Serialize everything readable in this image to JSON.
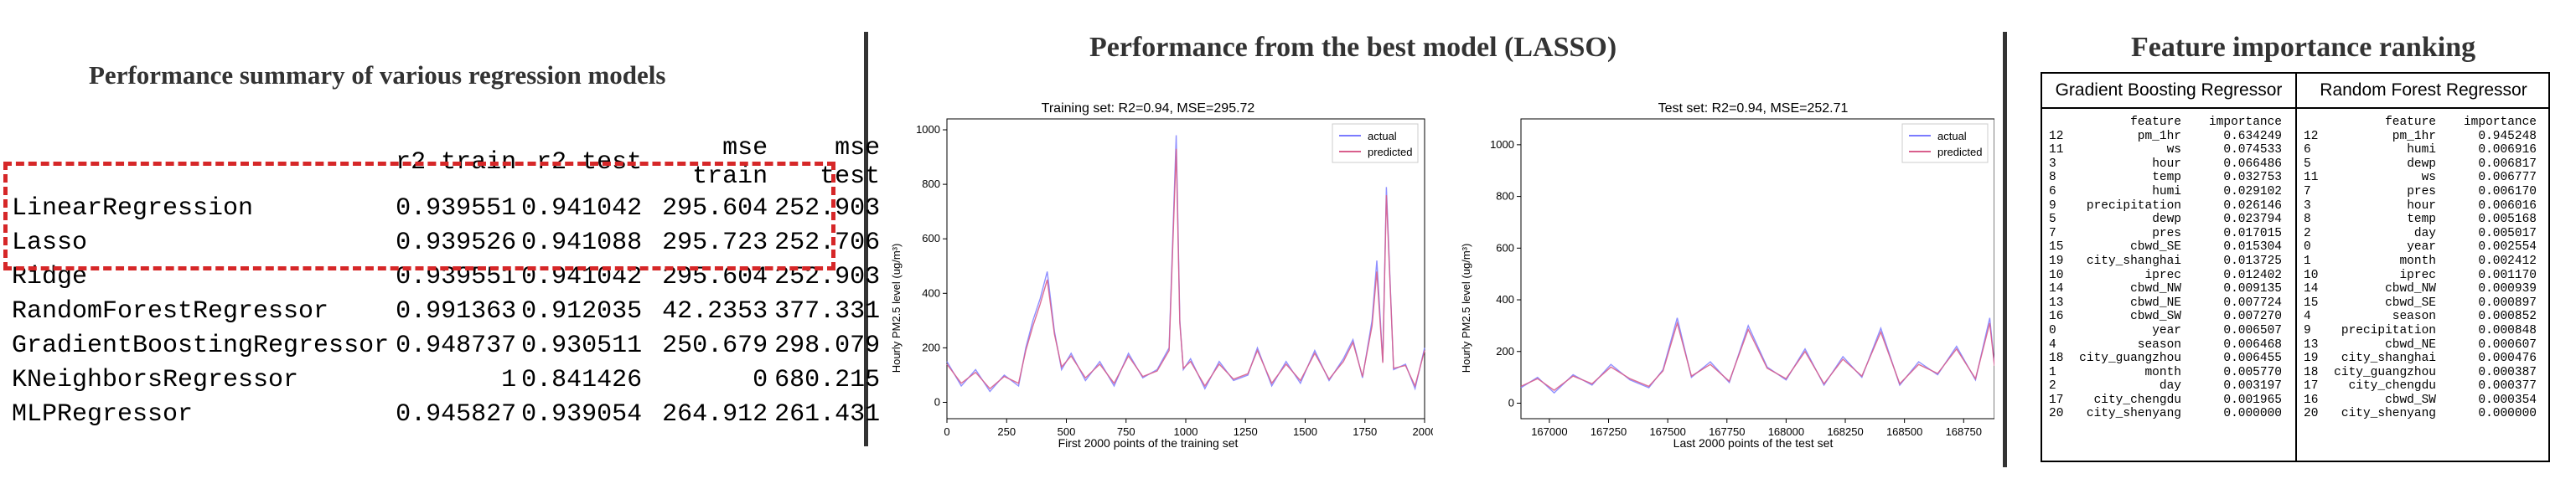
{
  "titles": {
    "summary": "Performance summary of various regression models",
    "best": "Performance from the best model (LASSO)",
    "importance": "Feature importance ranking"
  },
  "summary_table": {
    "columns": [
      "r2 train",
      "r2 test",
      "mse train",
      "mse test"
    ],
    "rows": [
      {
        "model": "LinearRegression",
        "values": [
          "0.939551",
          "0.941042",
          "295.604",
          "252.903"
        ]
      },
      {
        "model": "Lasso",
        "values": [
          "0.939526",
          "0.941088",
          "295.723",
          "252.706"
        ]
      },
      {
        "model": "Ridge",
        "values": [
          "0.939551",
          "0.941042",
          "295.604",
          "252.903"
        ]
      },
      {
        "model": "RandomForestRegressor",
        "values": [
          "0.991363",
          "0.912035",
          "42.2353",
          "377.331"
        ]
      },
      {
        "model": "GradientBoostingRegressor",
        "values": [
          "0.948737",
          "0.930511",
          "250.679",
          "298.079"
        ]
      },
      {
        "model": "KNeighborsRegressor",
        "values": [
          "1",
          "0.841426",
          "0",
          "680.215"
        ]
      },
      {
        "model": "MLPRegressor",
        "values": [
          "0.945827",
          "0.939054",
          "264.912",
          "261.431"
        ]
      }
    ],
    "highlight_color": "#d62728"
  },
  "chart_data": [
    {
      "type": "line",
      "title": "Training set: R2=0.94, MSE=295.72",
      "xlabel": "First 2000 points of the training set",
      "ylabel": "Hourly PM2.5 level (ug/m³)",
      "xlim": [
        0,
        2000
      ],
      "ylim": [
        -60,
        1040
      ],
      "xticks": [
        "0",
        "250",
        "500",
        "750",
        "1000",
        "1250",
        "1500",
        "1750",
        "2000"
      ],
      "yticks": [
        "0",
        "200",
        "400",
        "600",
        "800",
        "1000"
      ],
      "legend": {
        "position": "top-right",
        "entries": [
          "actual",
          "predicted"
        ]
      },
      "series": [
        {
          "name": "actual",
          "color": "#7b7bff",
          "x": [
            0,
            60,
            120,
            180,
            240,
            300,
            330,
            360,
            390,
            420,
            450,
            480,
            520,
            580,
            640,
            700,
            760,
            820,
            880,
            930,
            960,
            975,
            990,
            1020,
            1080,
            1140,
            1200,
            1260,
            1300,
            1360,
            1420,
            1480,
            1540,
            1600,
            1660,
            1700,
            1740,
            1780,
            1800,
            1825,
            1840,
            1870,
            1920,
            1960,
            2000
          ],
          "y": [
            150,
            60,
            120,
            40,
            100,
            60,
            200,
            300,
            380,
            480,
            260,
            120,
            180,
            80,
            150,
            60,
            180,
            90,
            120,
            200,
            980,
            300,
            120,
            160,
            50,
            150,
            80,
            100,
            200,
            60,
            150,
            70,
            190,
            80,
            160,
            230,
            90,
            300,
            520,
            150,
            790,
            120,
            140,
            50,
            200
          ]
        },
        {
          "name": "predicted",
          "color": "#d95f8c",
          "x": [
            0,
            60,
            120,
            180,
            240,
            300,
            330,
            360,
            390,
            420,
            450,
            480,
            520,
            580,
            640,
            700,
            760,
            820,
            880,
            930,
            960,
            975,
            990,
            1020,
            1080,
            1140,
            1200,
            1260,
            1300,
            1360,
            1420,
            1480,
            1540,
            1600,
            1660,
            1700,
            1740,
            1780,
            1800,
            1825,
            1840,
            1870,
            1920,
            1960,
            2000
          ],
          "y": [
            140,
            70,
            110,
            50,
            95,
            70,
            190,
            280,
            360,
            450,
            250,
            130,
            170,
            90,
            140,
            70,
            170,
            95,
            115,
            190,
            930,
            290,
            125,
            150,
            60,
            140,
            85,
            105,
            190,
            70,
            140,
            80,
            180,
            85,
            150,
            220,
            95,
            280,
            480,
            145,
            760,
            125,
            135,
            60,
            190
          ]
        }
      ]
    },
    {
      "type": "line",
      "title": "Test set: R2=0.94, MSE=252.71",
      "xlabel": "Last 2000 points of the test set",
      "ylabel": "Hourly PM2.5 level (ug/m³)",
      "xlim": [
        166880,
        168880
      ],
      "ylim": [
        -60,
        1100
      ],
      "xticks": [
        "167000",
        "167250",
        "167500",
        "167750",
        "168000",
        "168250",
        "168500",
        "168750"
      ],
      "yticks": [
        "0",
        "200",
        "400",
        "600",
        "800",
        "1000"
      ],
      "legend": {
        "position": "top-right",
        "entries": [
          "actual",
          "predicted"
        ]
      },
      "series": [
        {
          "name": "actual",
          "color": "#7b7bff",
          "x": [
            166880,
            166950,
            167020,
            167100,
            167180,
            167260,
            167340,
            167420,
            167480,
            167540,
            167600,
            167680,
            167760,
            167840,
            167920,
            168000,
            168080,
            168160,
            168240,
            168320,
            168400,
            168480,
            168560,
            168640,
            168720,
            168800,
            168860,
            168880
          ],
          "y": [
            60,
            100,
            40,
            110,
            70,
            150,
            90,
            60,
            130,
            330,
            100,
            160,
            80,
            300,
            140,
            90,
            210,
            70,
            180,
            100,
            290,
            70,
            160,
            110,
            220,
            90,
            330,
            150
          ]
        },
        {
          "name": "predicted",
          "color": "#d95f8c",
          "x": [
            166880,
            166950,
            167020,
            167100,
            167180,
            167260,
            167340,
            167420,
            167480,
            167540,
            167600,
            167680,
            167760,
            167840,
            167920,
            168000,
            168080,
            168160,
            168240,
            168320,
            168400,
            168480,
            168560,
            168640,
            168720,
            168800,
            168860,
            168880
          ],
          "y": [
            65,
            95,
            50,
            105,
            75,
            140,
            95,
            65,
            125,
            310,
            105,
            150,
            85,
            285,
            135,
            95,
            200,
            75,
            170,
            105,
            275,
            75,
            150,
            115,
            210,
            95,
            310,
            145
          ]
        }
      ]
    }
  ],
  "feature_importance": {
    "gradient_boosting": {
      "title": "Gradient Boosting Regressor",
      "header": [
        "feature",
        "importance"
      ],
      "rows": [
        [
          "12",
          "pm_1hr",
          "0.634249"
        ],
        [
          "11",
          "ws",
          "0.074533"
        ],
        [
          "3",
          "hour",
          "0.066486"
        ],
        [
          "8",
          "temp",
          "0.032753"
        ],
        [
          "6",
          "humi",
          "0.029102"
        ],
        [
          "9",
          "precipitation",
          "0.026146"
        ],
        [
          "5",
          "dewp",
          "0.023794"
        ],
        [
          "7",
          "pres",
          "0.017015"
        ],
        [
          "15",
          "cbwd_SE",
          "0.015304"
        ],
        [
          "19",
          "city_shanghai",
          "0.013725"
        ],
        [
          "10",
          "iprec",
          "0.012402"
        ],
        [
          "14",
          "cbwd_NW",
          "0.009135"
        ],
        [
          "13",
          "cbwd_NE",
          "0.007724"
        ],
        [
          "16",
          "cbwd_SW",
          "0.007270"
        ],
        [
          "0",
          "year",
          "0.006507"
        ],
        [
          "4",
          "season",
          "0.006468"
        ],
        [
          "18",
          "city_guangzhou",
          "0.006455"
        ],
        [
          "1",
          "month",
          "0.005770"
        ],
        [
          "2",
          "day",
          "0.003197"
        ],
        [
          "17",
          "city_chengdu",
          "0.001965"
        ],
        [
          "20",
          "city_shenyang",
          "0.000000"
        ]
      ]
    },
    "random_forest": {
      "title": "Random Forest Regressor",
      "header": [
        "feature",
        "importance"
      ],
      "rows": [
        [
          "12",
          "pm_1hr",
          "0.945248"
        ],
        [
          "6",
          "humi",
          "0.006916"
        ],
        [
          "5",
          "dewp",
          "0.006817"
        ],
        [
          "11",
          "ws",
          "0.006777"
        ],
        [
          "7",
          "pres",
          "0.006170"
        ],
        [
          "3",
          "hour",
          "0.006016"
        ],
        [
          "8",
          "temp",
          "0.005168"
        ],
        [
          "2",
          "day",
          "0.005017"
        ],
        [
          "0",
          "year",
          "0.002554"
        ],
        [
          "1",
          "month",
          "0.002412"
        ],
        [
          "10",
          "iprec",
          "0.001170"
        ],
        [
          "14",
          "cbwd_NW",
          "0.000939"
        ],
        [
          "15",
          "cbwd_SE",
          "0.000897"
        ],
        [
          "4",
          "season",
          "0.000852"
        ],
        [
          "9",
          "precipitation",
          "0.000848"
        ],
        [
          "13",
          "cbwd_NE",
          "0.000607"
        ],
        [
          "19",
          "city_shanghai",
          "0.000476"
        ],
        [
          "18",
          "city_guangzhou",
          "0.000387"
        ],
        [
          "17",
          "city_chengdu",
          "0.000377"
        ],
        [
          "16",
          "cbwd_SW",
          "0.000354"
        ],
        [
          "20",
          "city_shenyang",
          "0.000000"
        ]
      ]
    }
  }
}
